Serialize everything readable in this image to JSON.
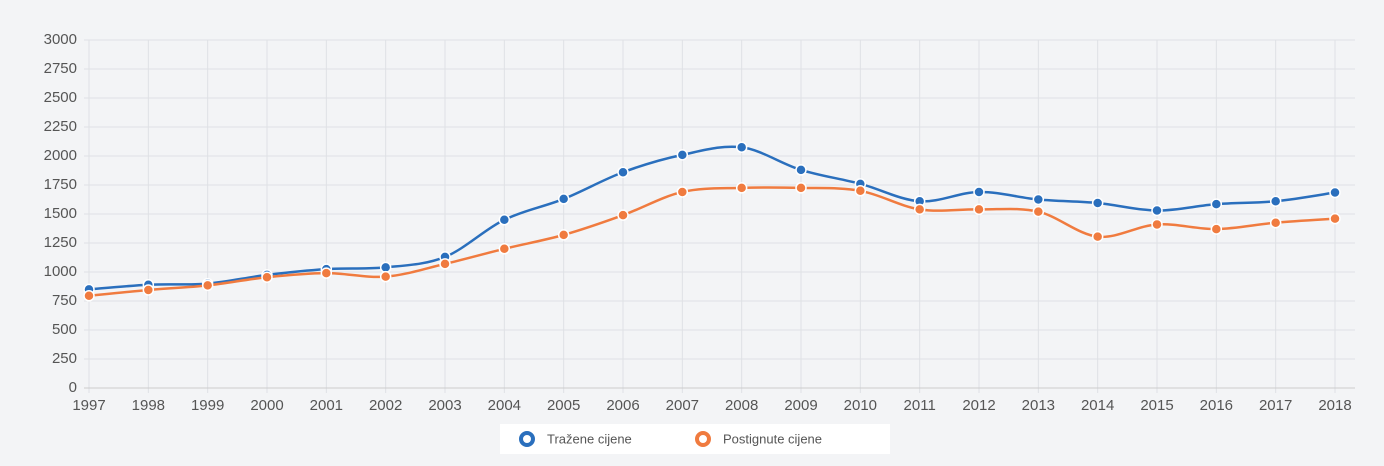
{
  "chart_data": {
    "type": "line",
    "categories": [
      "1997",
      "1998",
      "1999",
      "2000",
      "2001",
      "2002",
      "2003",
      "2004",
      "2005",
      "2006",
      "2007",
      "2008",
      "2009",
      "2010",
      "2011",
      "2012",
      "2013",
      "2014",
      "2015",
      "2016",
      "2017",
      "2018"
    ],
    "series": [
      {
        "name": "Tražene cijene",
        "color": "#2a6fbd",
        "values": [
          850,
          890,
          900,
          975,
          1025,
          1040,
          1130,
          1450,
          1630,
          1860,
          2010,
          2075,
          1880,
          1760,
          1610,
          1690,
          1625,
          1595,
          1530,
          1585,
          1610,
          1685
        ]
      },
      {
        "name": "Postignute cijene",
        "color": "#f07b3f",
        "values": [
          795,
          845,
          885,
          955,
          990,
          960,
          1070,
          1200,
          1320,
          1490,
          1690,
          1725,
          1725,
          1700,
          1540,
          1540,
          1520,
          1305,
          1410,
          1370,
          1425,
          1460
        ]
      }
    ],
    "ylim": [
      0,
      3000
    ],
    "yticks": [
      0,
      250,
      500,
      750,
      1000,
      1250,
      1500,
      1750,
      2000,
      2250,
      2500,
      2750,
      3000
    ],
    "grid": true,
    "legend": "bottom"
  }
}
